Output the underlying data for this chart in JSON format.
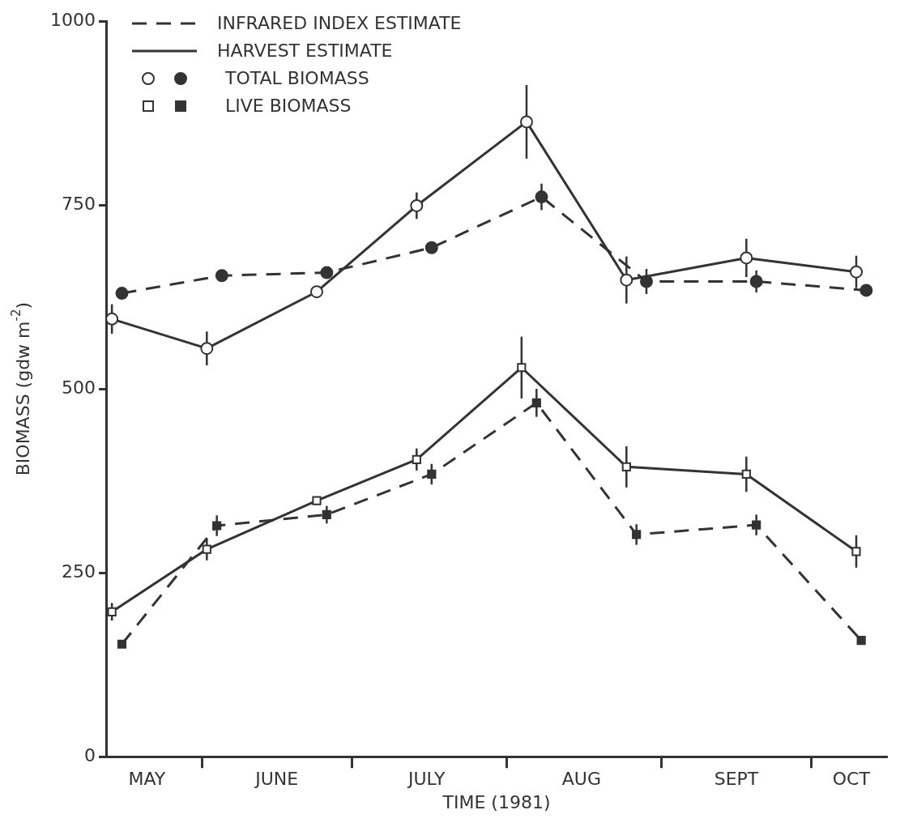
{
  "chart_data": {
    "type": "line",
    "xlabel": "TIME (1981)",
    "ylabel": "BIOMASS (gdw m$^{-2}$)",
    "xlim": [
      "1981-05-13",
      "1981-10-16"
    ],
    "xticks": [
      {
        "value": "1981-05-21",
        "label": "MAY"
      },
      {
        "value": "1981-06-01",
        "label": null
      },
      {
        "value": "1981-06-16",
        "label": "JUNE"
      },
      {
        "value": "1981-07-01",
        "label": null
      },
      {
        "value": "1981-07-16",
        "label": "JULY"
      },
      {
        "value": "1981-08-01",
        "label": null
      },
      {
        "value": "1981-08-16",
        "label": "AUG"
      },
      {
        "value": "1981-09-01",
        "label": null
      },
      {
        "value": "1981-09-16",
        "label": "SEPT"
      },
      {
        "value": "1981-10-01",
        "label": null
      },
      {
        "value": "1981-10-09",
        "label": "OCT"
      }
    ],
    "ylim": [
      0,
      1000
    ],
    "yticks": [
      0,
      250,
      500,
      750,
      1000
    ],
    "grid": false,
    "legend": "top left",
    "annotations": [
      "TOTAL BIOMASS",
      "LIVE BIOMASS"
    ],
    "series": [
      {
        "name": "INFRARED INDEX ESTIMATE",
        "color": "#333333",
        "line_style": "dashed",
        "marker": "circle",
        "x": [
          "1981-05-16",
          "1981-06-05",
          "1981-06-26",
          "1981-07-17",
          "1981-08-08",
          "1981-08-29",
          "1981-09-20",
          "1981-10-12"
        ],
        "values": [
          630,
          654,
          658,
          692,
          761,
          646,
          646,
          634
        ],
        "errors": [
          null,
          null,
          null,
          null,
          18,
          17,
          15,
          null
        ]
      },
      {
        "name": "HARVEST ESTIMATE",
        "color": "#333333",
        "line_style": "solid",
        "marker": "circle",
        "x": [
          "1981-05-14",
          "1981-06-02",
          "1981-06-24",
          "1981-07-14",
          "1981-08-05",
          "1981-08-25",
          "1981-09-18",
          "1981-10-10"
        ],
        "values": [
          595,
          555,
          632,
          749,
          863,
          648,
          678,
          659
        ],
        "errors": [
          20,
          23,
          null,
          18,
          50,
          32,
          26,
          22
        ]
      },
      {
        "color": "#333333",
        "line_style": "dashed",
        "marker": "square",
        "x": [
          "1981-05-16",
          "1981-06-04",
          "1981-06-26",
          "1981-07-17",
          "1981-08-07",
          "1981-08-27",
          "1981-09-20",
          "1981-10-11"
        ],
        "values": [
          153,
          314,
          329,
          384,
          481,
          302,
          315,
          158
        ],
        "errors": [
          null,
          14,
          12,
          14,
          19,
          14,
          14,
          null
        ]
      },
      {
        "color": "#333333",
        "line_style": "solid",
        "marker": "square",
        "x": [
          "1981-05-14",
          "1981-06-02",
          "1981-06-24",
          "1981-07-14",
          "1981-08-04",
          "1981-08-25",
          "1981-09-18",
          "1981-10-10"
        ],
        "values": [
          197,
          282,
          348,
          404,
          529,
          394,
          384,
          279
        ],
        "errors": [
          12,
          15,
          null,
          15,
          42,
          28,
          24,
          22
        ]
      }
    ]
  }
}
